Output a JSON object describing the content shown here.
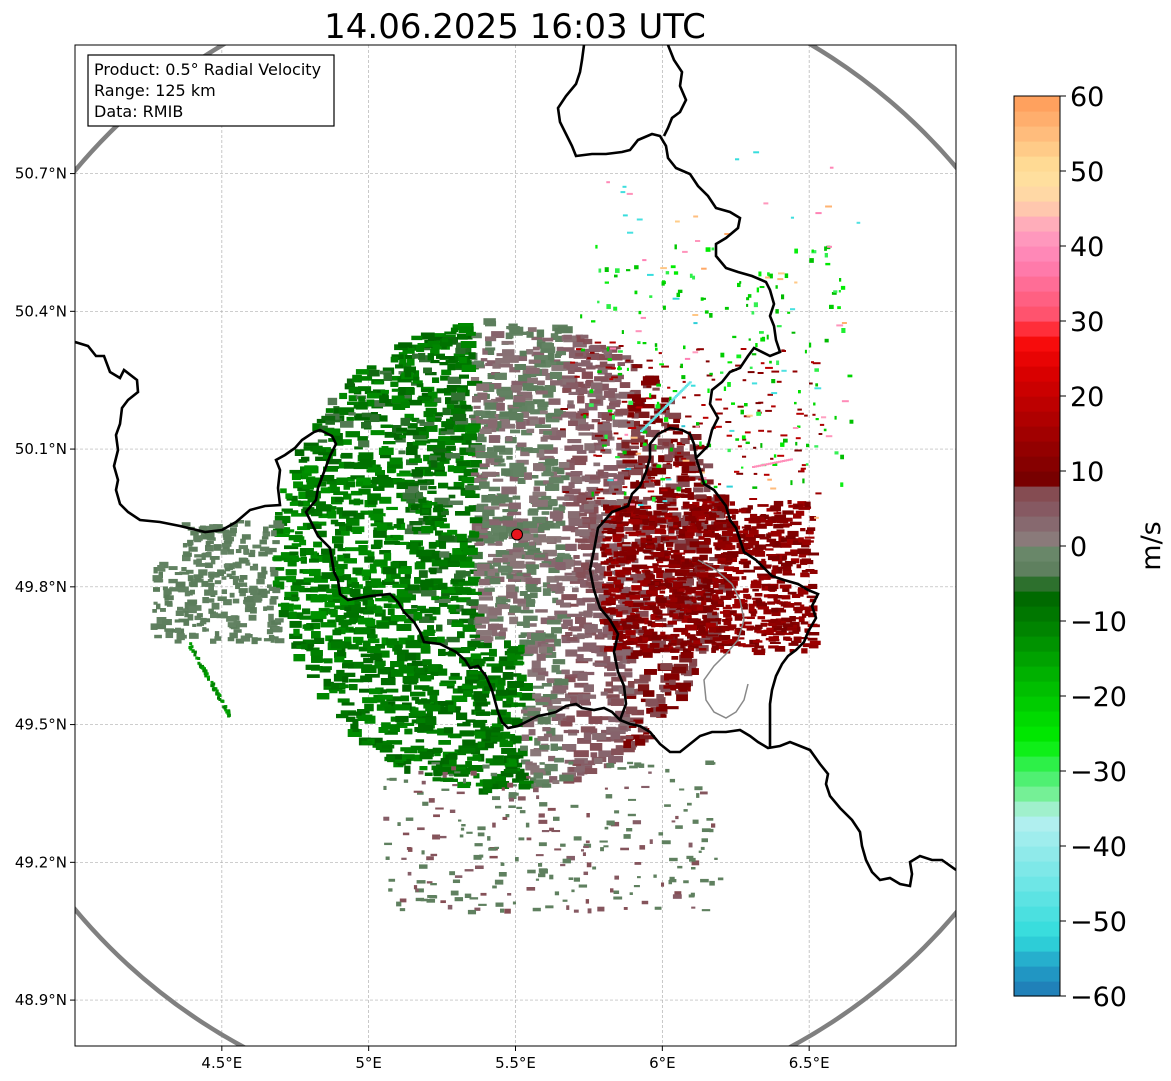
{
  "title": "14.06.2025 16:03 UTC",
  "info_box": {
    "lines": [
      "Product: 0.5° Radial Velocity",
      "Range: 125 km",
      "Data: RMIB"
    ]
  },
  "map": {
    "lon_range": [
      4.0,
      7.0
    ],
    "lat_range": [
      48.8,
      50.98
    ],
    "radar_site": {
      "lon": 5.505,
      "lat": 49.914,
      "color": "#e8141c"
    },
    "range_ring_color": "#808080",
    "border_color": "#000000",
    "grid": true,
    "lon_ticks": [
      {
        "value": 4.5,
        "label": "4.5°E"
      },
      {
        "value": 5.0,
        "label": "5°E"
      },
      {
        "value": 5.5,
        "label": "5.5°E"
      },
      {
        "value": 6.0,
        "label": "6°E"
      },
      {
        "value": 6.5,
        "label": "6.5°E"
      }
    ],
    "lat_ticks": [
      {
        "value": 50.7,
        "label": "50.7°N"
      },
      {
        "value": 50.4,
        "label": "50.4°N"
      },
      {
        "value": 50.1,
        "label": "50.1°N"
      },
      {
        "value": 49.8,
        "label": "49.8°N"
      },
      {
        "value": 49.5,
        "label": "49.5°N"
      },
      {
        "value": 49.2,
        "label": "49.2°N"
      },
      {
        "value": 48.9,
        "label": "48.9°N"
      }
    ]
  },
  "colorbar": {
    "label": "m/s",
    "range": [
      -60,
      60
    ],
    "ticks": [
      {
        "value": 60,
        "label": "60"
      },
      {
        "value": 50,
        "label": "50"
      },
      {
        "value": 40,
        "label": "40"
      },
      {
        "value": 30,
        "label": "30"
      },
      {
        "value": 20,
        "label": "20"
      },
      {
        "value": 10,
        "label": "10"
      },
      {
        "value": 0,
        "label": "0"
      },
      {
        "value": -10,
        "label": "−10"
      },
      {
        "value": -20,
        "label": "−20"
      },
      {
        "value": -30,
        "label": "−30"
      },
      {
        "value": -40,
        "label": "−40"
      },
      {
        "value": -50,
        "label": "−50"
      },
      {
        "value": -60,
        "label": "−60"
      }
    ],
    "stops": [
      {
        "v": -60,
        "c": "#1f77b4"
      },
      {
        "v": -56,
        "c": "#22a0c8"
      },
      {
        "v": -52,
        "c": "#30dcdc"
      },
      {
        "v": -45,
        "c": "#6ee6e6"
      },
      {
        "v": -36,
        "c": "#b8f0f0"
      },
      {
        "v": -34,
        "c": "#88f0a8"
      },
      {
        "v": -30,
        "c": "#3cf060"
      },
      {
        "v": -26,
        "c": "#00ee00"
      },
      {
        "v": -18,
        "c": "#00b800"
      },
      {
        "v": -10,
        "c": "#007d00"
      },
      {
        "v": -6,
        "c": "#006400"
      },
      {
        "v": -4,
        "c": "#5a7c5a"
      },
      {
        "v": 0,
        "c": "#6e8a6e"
      },
      {
        "v": 1,
        "c": "#8a7a7a"
      },
      {
        "v": 4,
        "c": "#86606a"
      },
      {
        "v": 8,
        "c": "#84454a"
      },
      {
        "v": 9,
        "c": "#780000"
      },
      {
        "v": 16,
        "c": "#a80000"
      },
      {
        "v": 24,
        "c": "#e00000"
      },
      {
        "v": 28,
        "c": "#ff1010"
      },
      {
        "v": 30,
        "c": "#ff4c64"
      },
      {
        "v": 38,
        "c": "#ff80b4"
      },
      {
        "v": 42,
        "c": "#ffa0c0"
      },
      {
        "v": 46,
        "c": "#ffd4a8"
      },
      {
        "v": 50,
        "c": "#ffe29a"
      },
      {
        "v": 55,
        "c": "#ffbc7c"
      },
      {
        "v": 60,
        "c": "#ff9a56"
      }
    ]
  }
}
